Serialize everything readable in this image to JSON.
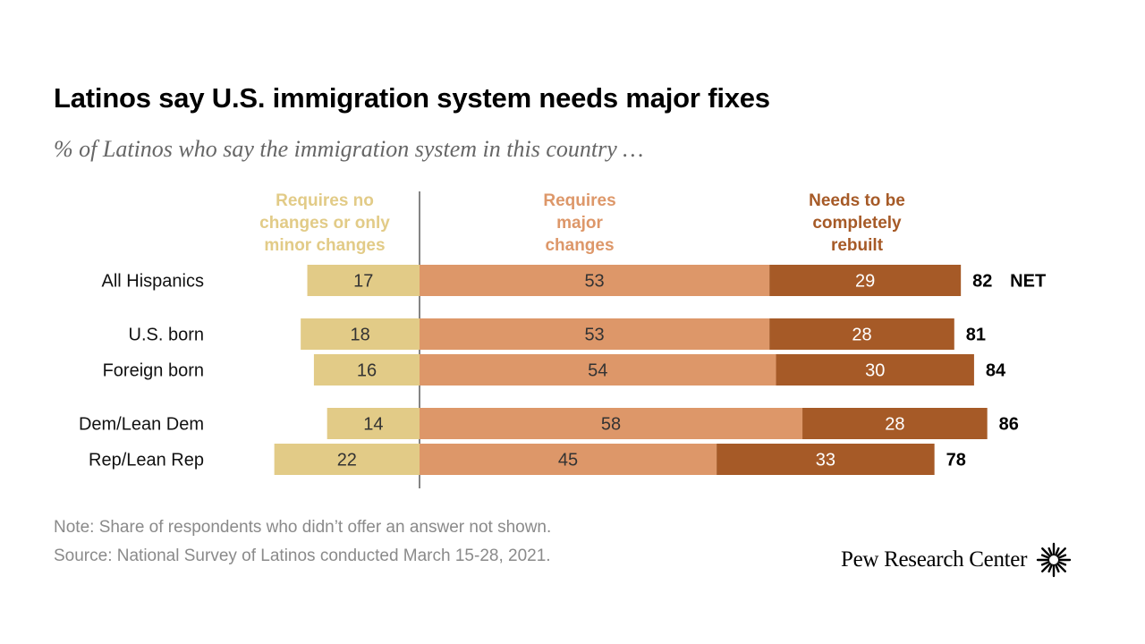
{
  "title": "Latinos say U.S. immigration system needs major fixes",
  "subtitle": "% of Latinos who say the immigration system in this country …",
  "note": "Note: Share of respondents who didn’t offer an answer not shown.",
  "source": "Source: National Survey of Latinos conducted March 15-28, 2021.",
  "brand": {
    "name": "Pew Research Center",
    "logo_icon": "pew-sunburst-icon"
  },
  "colors": {
    "minor": "#e2cb87",
    "major": "#dd9769",
    "rebuilt": "#a65a27",
    "divider": "#333333"
  },
  "chart_data": {
    "type": "bar",
    "orientation": "horizontal",
    "stacking": "diverging",
    "categories": [
      "All Hispanics",
      "U.S. born",
      "Foreign born",
      "Dem/Lean Dem",
      "Rep/Lean Rep"
    ],
    "series": [
      {
        "name": "Requires no changes or only minor changes",
        "header_lines": [
          "Requires no",
          "changes or only",
          "minor changes"
        ],
        "color": "#e2cb87",
        "values": [
          17,
          18,
          16,
          14,
          22
        ]
      },
      {
        "name": "Requires major changes",
        "header_lines": [
          "Requires",
          "major",
          "changes"
        ],
        "color": "#dd9769",
        "values": [
          53,
          53,
          54,
          58,
          45
        ]
      },
      {
        "name": "Needs to be completely rebuilt",
        "header_lines": [
          "Needs to be",
          "completely",
          "rebuilt"
        ],
        "color": "#a65a27",
        "values": [
          29,
          28,
          30,
          28,
          33
        ]
      }
    ],
    "net": {
      "values": [
        82,
        81,
        84,
        86,
        78
      ],
      "label": "NET"
    }
  }
}
